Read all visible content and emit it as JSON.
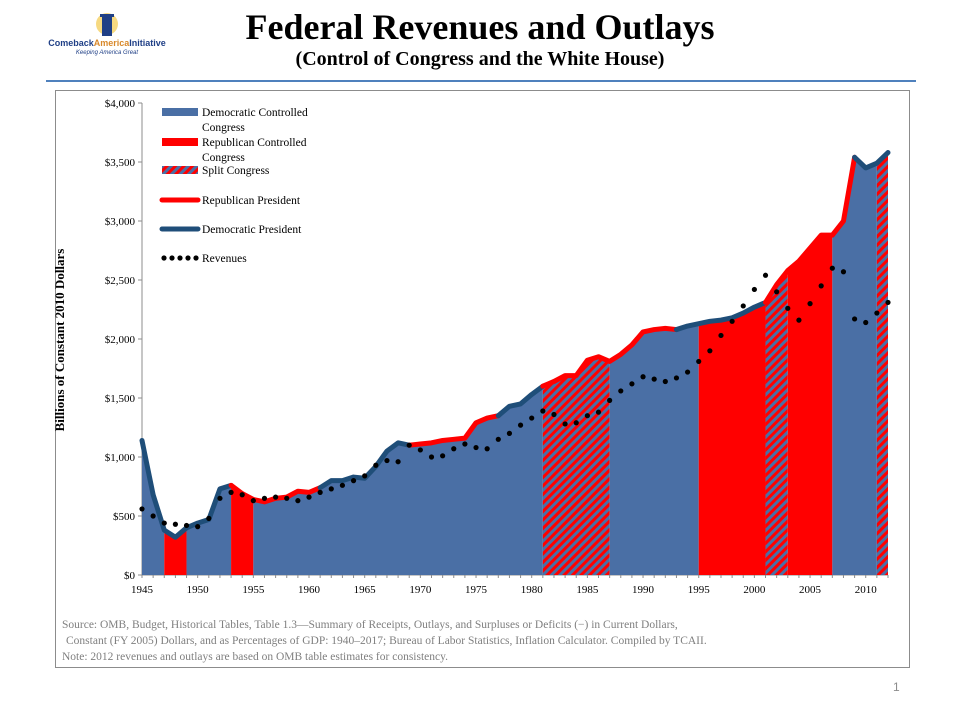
{
  "header": {
    "title": "Federal Revenues and Outlays",
    "subtitle": "(Control of Congress and the White House)",
    "logo_name_part1": "Comeback",
    "logo_name_part2": "America",
    "logo_name_part3": "Initiative",
    "logo_tagline": "Keeping America Great"
  },
  "source_lines": [
    "Source: OMB, Budget, Historical Tables, Table 1.3—Summary of Receipts, Outlays, and Surpluses or Deficits (−) in Current Dollars,",
    "Constant (FY 2005) Dollars,  and as Percentages of GDP: 1940–2017;  Bureau of Labor Statistics, Inflation Calculator. Compiled by TCAII.",
    "Note: 2012 revenues and outlays are based on OMB table estimates for consistency."
  ],
  "page_number": "1",
  "colors": {
    "democratic": "#4a6fa5",
    "republican": "#ff0000",
    "dem_president_line": "#1f4e79",
    "rep_president_line": "#ff0000",
    "revenues_dots": "#000000",
    "axis": "#8c8c8c",
    "accent_rule": "#4f81bd"
  },
  "chart_data": {
    "type": "area",
    "title": "Federal Revenues and Outlays",
    "ylabel": "Billions  of Constant 2010 Dollars",
    "xlabel": "",
    "xlim": [
      1945,
      2012
    ],
    "ylim": [
      0,
      4000
    ],
    "x_ticks": [
      1945,
      1950,
      1955,
      1960,
      1965,
      1970,
      1975,
      1980,
      1985,
      1990,
      1995,
      2000,
      2005,
      2010
    ],
    "y_ticks": [
      {
        "value": 0,
        "label": "$0"
      },
      {
        "value": 500,
        "label": "$500"
      },
      {
        "value": 1000,
        "label": "$1,000"
      },
      {
        "value": 1500,
        "label": "$1,500"
      },
      {
        "value": 2000,
        "label": "$2,000"
      },
      {
        "value": 2500,
        "label": "$2,500"
      },
      {
        "value": 3000,
        "label": "$3,000"
      },
      {
        "value": 3500,
        "label": "$3,500"
      },
      {
        "value": 4000,
        "label": "$4,000"
      }
    ],
    "legend": {
      "placement": "top-left",
      "items": [
        {
          "label": "Democratic Controlled Congress",
          "lines": [
            "Democratic Controlled",
            "Congress"
          ],
          "kind": "area-dem"
        },
        {
          "label": "Republican Controlled Congress",
          "lines": [
            "Republican Controlled",
            "Congress"
          ],
          "kind": "area-rep"
        },
        {
          "label": "Split Congress",
          "lines": [
            "Split Congress"
          ],
          "kind": "area-split"
        },
        {
          "label": "Republican President",
          "lines": [
            "Republican President"
          ],
          "kind": "line-rep"
        },
        {
          "label": "Democratic President",
          "lines": [
            "Democratic President"
          ],
          "kind": "line-dem"
        },
        {
          "label": "Revenues",
          "lines": [
            "Revenues"
          ],
          "kind": "dots"
        }
      ]
    },
    "outlays": {
      "name": "Outlays",
      "x": [
        1945,
        1946,
        1947,
        1948,
        1949,
        1950,
        1951,
        1952,
        1953,
        1954,
        1955,
        1956,
        1957,
        1958,
        1959,
        1960,
        1961,
        1962,
        1963,
        1964,
        1965,
        1966,
        1967,
        1968,
        1969,
        1970,
        1971,
        1972,
        1973,
        1974,
        1975,
        1976,
        1977,
        1978,
        1979,
        1980,
        1981,
        1982,
        1983,
        1984,
        1985,
        1986,
        1987,
        1988,
        1989,
        1990,
        1991,
        1992,
        1993,
        1994,
        1995,
        1996,
        1997,
        1998,
        1999,
        2000,
        2001,
        2002,
        2003,
        2004,
        2005,
        2006,
        2007,
        2008,
        2009,
        2010,
        2011,
        2012
      ],
      "y": [
        1140,
        680,
        380,
        320,
        400,
        440,
        470,
        730,
        760,
        690,
        640,
        620,
        650,
        660,
        710,
        700,
        740,
        800,
        800,
        830,
        820,
        920,
        1050,
        1120,
        1100,
        1110,
        1120,
        1140,
        1150,
        1160,
        1290,
        1330,
        1350,
        1430,
        1450,
        1530,
        1600,
        1640,
        1690,
        1690,
        1820,
        1850,
        1810,
        1870,
        1950,
        2060,
        2080,
        2090,
        2080,
        2110,
        2130,
        2150,
        2160,
        2180,
        2220,
        2270,
        2310,
        2460,
        2580,
        2660,
        2770,
        2880,
        2880,
        3000,
        3540,
        3450,
        3490,
        3580
      ]
    },
    "revenues": {
      "name": "Revenues",
      "x": [
        1945,
        1946,
        1947,
        1948,
        1949,
        1950,
        1951,
        1952,
        1953,
        1954,
        1955,
        1956,
        1957,
        1958,
        1959,
        1960,
        1961,
        1962,
        1963,
        1964,
        1965,
        1966,
        1967,
        1968,
        1969,
        1970,
        1971,
        1972,
        1973,
        1974,
        1975,
        1976,
        1977,
        1978,
        1979,
        1980,
        1981,
        1982,
        1983,
        1984,
        1985,
        1986,
        1987,
        1988,
        1989,
        1990,
        1991,
        1992,
        1993,
        1994,
        1995,
        1996,
        1997,
        1998,
        1999,
        2000,
        2001,
        2002,
        2003,
        2004,
        2005,
        2006,
        2007,
        2008,
        2009,
        2010,
        2011,
        2012
      ],
      "y": [
        560,
        500,
        440,
        430,
        420,
        410,
        480,
        650,
        700,
        680,
        630,
        650,
        660,
        650,
        630,
        660,
        700,
        730,
        760,
        800,
        840,
        930,
        970,
        960,
        1100,
        1060,
        1000,
        1010,
        1070,
        1110,
        1080,
        1070,
        1150,
        1200,
        1270,
        1330,
        1390,
        1360,
        1280,
        1290,
        1350,
        1380,
        1480,
        1560,
        1620,
        1680,
        1660,
        1640,
        1670,
        1720,
        1810,
        1900,
        2030,
        2150,
        2280,
        2420,
        2540,
        2400,
        2260,
        2160,
        2300,
        2450,
        2600,
        2570,
        2170,
        2140,
        2220,
        2310
      ]
    },
    "congress_control": [
      {
        "from": 1945,
        "to": 1947,
        "party": "democratic"
      },
      {
        "from": 1947,
        "to": 1949,
        "party": "republican"
      },
      {
        "from": 1949,
        "to": 1953,
        "party": "democratic"
      },
      {
        "from": 1953,
        "to": 1955,
        "party": "republican"
      },
      {
        "from": 1955,
        "to": 1981,
        "party": "democratic"
      },
      {
        "from": 1981,
        "to": 1987,
        "party": "split"
      },
      {
        "from": 1987,
        "to": 1995,
        "party": "democratic"
      },
      {
        "from": 1995,
        "to": 2001,
        "party": "republican"
      },
      {
        "from": 2001,
        "to": 2003,
        "party": "split"
      },
      {
        "from": 2003,
        "to": 2007,
        "party": "republican"
      },
      {
        "from": 2007,
        "to": 2011,
        "party": "democratic"
      },
      {
        "from": 2011,
        "to": 2012,
        "party": "split"
      }
    ],
    "presidency": [
      {
        "from": 1945,
        "to": 1953,
        "party": "democratic"
      },
      {
        "from": 1953,
        "to": 1961,
        "party": "republican"
      },
      {
        "from": 1961,
        "to": 1969,
        "party": "democratic"
      },
      {
        "from": 1969,
        "to": 1977,
        "party": "republican"
      },
      {
        "from": 1977,
        "to": 1981,
        "party": "democratic"
      },
      {
        "from": 1981,
        "to": 1993,
        "party": "republican"
      },
      {
        "from": 1993,
        "to": 2001,
        "party": "democratic"
      },
      {
        "from": 2001,
        "to": 2009,
        "party": "republican"
      },
      {
        "from": 2009,
        "to": 2012,
        "party": "democratic"
      }
    ]
  }
}
